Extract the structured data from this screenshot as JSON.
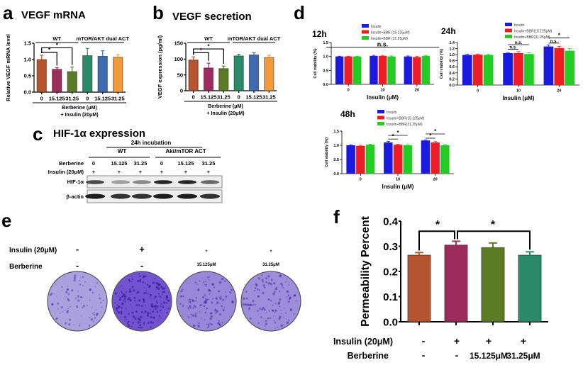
{
  "panels": {
    "a": {
      "letter": "a",
      "title": "VEGF mRNA",
      "xlabel_1": "Berberine (μM)",
      "xlabel_2": "+ Insulin (20μM)"
    },
    "b": {
      "letter": "b",
      "title": "VEGF secretion",
      "xlabel_1": "Berberine (μM)",
      "xlabel_2": "+ Insulin (20μM)"
    },
    "c": {
      "letter": "c",
      "title": "HIF-1α expression",
      "incubation": "24h incubation",
      "group_wt": "WT",
      "group_act": "Akt/mTOR ACT",
      "row_berberine": "Berberine",
      "row_insulin": "Insulin (20μM)",
      "lanes_berberine": [
        "0",
        "15.125",
        "31.25",
        "0",
        "15.125",
        "31.25"
      ],
      "lanes_insulin": [
        "+",
        "+",
        "+",
        "+",
        "+",
        "+"
      ],
      "band_hif": "HIF-1α",
      "band_actin": "β-actin",
      "hif_band_intensity": [
        0.75,
        0.35,
        0.45,
        0.9,
        0.9,
        0.6
      ],
      "actin_band_intensity": [
        0.95,
        0.85,
        0.85,
        0.95,
        0.95,
        0.85
      ]
    },
    "d": {
      "letter": "d",
      "legend": [
        "Insulin",
        "Insulin+BBR (15.125μM)",
        "Insulin+BBR (31.25μM)"
      ]
    },
    "e": {
      "letter": "e",
      "row_insulin": "Insulin (20μM)",
      "row_berberine": "Berberine",
      "insulin": [
        "-",
        "+",
        "+",
        "+"
      ],
      "berberine": [
        "-",
        "-",
        "15.125μM",
        "31.25μM"
      ],
      "stain_density": [
        0.3,
        0.9,
        0.5,
        0.45
      ]
    },
    "f": {
      "letter": "f",
      "row_insulin": "Insulin (20μM)",
      "row_berberine": "Berberine",
      "insulin": [
        "-",
        "+",
        "+",
        "+"
      ],
      "berberine": [
        "-",
        "-",
        "15.125μM",
        "31.25μM"
      ]
    }
  },
  "chart_data": [
    {
      "id": "a",
      "type": "bar",
      "ylabel": "Relative VEGF mRNA level",
      "categories": [
        "0",
        "15.125",
        "31.25",
        "0",
        "15.125",
        "31.25"
      ],
      "ylim": [
        0,
        1.5
      ],
      "yticks": [
        "0.0",
        "0.5",
        "1.0",
        "1.5"
      ],
      "series": [
        {
          "values": [
            1.0,
            0.7,
            0.63,
            1.12,
            1.1,
            1.07
          ],
          "errors": [
            0.13,
            0.05,
            0.14,
            0.22,
            0.17,
            0.08
          ]
        }
      ],
      "bar_colors": [
        "#b4552f",
        "#9c2c5c",
        "#5b7b25",
        "#2a8a6a",
        "#3f6caf",
        "#f39a3c"
      ],
      "groups": [
        {
          "label": "WT",
          "from": 0,
          "to": 2
        },
        {
          "label": "mTOR/AKT dual ACT",
          "from": 3,
          "to": 5
        }
      ],
      "annotations": [
        {
          "text": "*",
          "from": [
            0,
            0
          ],
          "to": [
            1,
            0
          ],
          "level": 1.22
        },
        {
          "text": "*",
          "from": [
            0,
            0
          ],
          "to": [
            2,
            0
          ],
          "level": 1.36
        }
      ]
    },
    {
      "id": "b",
      "type": "bar",
      "ylabel": "VEGF expression (pg/ml)",
      "categories": [
        "0",
        "15.125",
        "31.25",
        "0",
        "15.125",
        "31.25"
      ],
      "ylim": [
        0,
        150
      ],
      "yticks": [
        "0",
        "50",
        "100",
        "150"
      ],
      "series": [
        {
          "values": [
            97,
            72,
            70,
            110,
            113,
            105
          ],
          "errors": [
            10,
            15,
            8,
            5,
            7,
            7
          ]
        }
      ],
      "bar_colors": [
        "#b4552f",
        "#9c2c5c",
        "#5b7b25",
        "#2a8a6a",
        "#3f6caf",
        "#f39a3c"
      ],
      "groups": [
        {
          "label": "WT",
          "from": 0,
          "to": 2
        },
        {
          "label": "mTOR/AKT dual ACT",
          "from": 3,
          "to": 5
        }
      ],
      "annotations": [
        {
          "text": "*",
          "from": [
            0,
            0
          ],
          "to": [
            1,
            0
          ],
          "level": 120
        },
        {
          "text": "*",
          "from": [
            0,
            0
          ],
          "to": [
            2,
            0
          ],
          "level": 132
        }
      ]
    },
    {
      "id": "d12",
      "type": "bar",
      "title": "12h",
      "xlabel": "Insulin (μM)",
      "ylabel": "Cell viability (%)",
      "categories": [
        "0",
        "10",
        "20"
      ],
      "ylim": [
        0,
        1.5
      ],
      "yticks": [
        "0.0",
        "0.5",
        "1.0",
        "1.5"
      ],
      "legend_position": "top",
      "series": [
        {
          "name": "Insulin",
          "color": "#1a1ae0",
          "values": [
            1.0,
            1.02,
            1.0
          ],
          "errors": [
            0.01,
            0.02,
            0.02
          ]
        },
        {
          "name": "Insulin+BBR (15.125μM)",
          "color": "#ee1c24",
          "values": [
            1.0,
            1.02,
            0.98
          ],
          "errors": [
            0.01,
            0.02,
            0.02
          ]
        },
        {
          "name": "Insulin+BBR (31.25μM)",
          "color": "#22cc22",
          "values": [
            1.0,
            1.0,
            1.02
          ],
          "errors": [
            0.01,
            0.02,
            0.02
          ]
        }
      ],
      "annotations": [
        {
          "text": "n.s.",
          "from": [
            0,
            0
          ],
          "to": [
            2,
            2
          ],
          "level": 1.33,
          "flat": true
        }
      ]
    },
    {
      "id": "d24",
      "type": "bar",
      "title": "24h",
      "xlabel": "Insulin (μM)",
      "ylabel": "Cell viability (%)",
      "categories": [
        "0",
        "10",
        "20"
      ],
      "ylim": [
        0,
        1.4
      ],
      "yticks": [
        "0.0",
        "0.2",
        "0.4",
        "0.6",
        "0.8",
        "1.0",
        "1.2",
        "1.4"
      ],
      "legend_position": "top",
      "series": [
        {
          "name": "Insulin",
          "color": "#1a1ae0",
          "values": [
            0.99,
            1.05,
            1.27
          ],
          "errors": [
            0.03,
            0.02,
            0.05
          ]
        },
        {
          "name": "Insulin+BBR(15.125μM)",
          "color": "#ee1c24",
          "values": [
            1.0,
            1.05,
            1.22
          ],
          "errors": [
            0.02,
            0.05,
            0.05
          ]
        },
        {
          "name": "Insulin+BBR(31.25μM)",
          "color": "#22cc22",
          "values": [
            0.99,
            1.02,
            1.13
          ],
          "errors": [
            0.02,
            0.04,
            0.07
          ]
        }
      ],
      "annotations": [
        {
          "text": "n.s.",
          "from": [
            1,
            0
          ],
          "to": [
            1,
            1
          ],
          "level": 1.18,
          "flat": true
        },
        {
          "text": "n.s.",
          "from": [
            1,
            0
          ],
          "to": [
            1,
            2
          ],
          "level": 1.33,
          "flat": true
        },
        {
          "text": "n.s.",
          "from": [
            2,
            0
          ],
          "to": [
            2,
            1
          ],
          "level": 1.38,
          "flat": true
        },
        {
          "text": "*",
          "from": [
            2,
            0
          ],
          "to": [
            2,
            2
          ],
          "level": 1.55,
          "flat": true
        }
      ]
    },
    {
      "id": "d48",
      "type": "bar",
      "title": "48h",
      "xlabel": "Insulin (μM)",
      "ylabel": "Cell viability (%)",
      "categories": [
        "0",
        "10",
        "20"
      ],
      "ylim": [
        0,
        1.5
      ],
      "yticks": [
        "0.0",
        "0.5",
        "1.0",
        "1.5"
      ],
      "legend_position": "top",
      "series": [
        {
          "name": "Insulin",
          "color": "#1a1ae0",
          "values": [
            1.0,
            1.1,
            1.17
          ],
          "errors": [
            0.02,
            0.04,
            0.02
          ]
        },
        {
          "name": "Insulin+BBR(15.125μM)",
          "color": "#ee1c24",
          "values": [
            0.98,
            1.02,
            1.1
          ],
          "errors": [
            0.02,
            0.02,
            0.03
          ]
        },
        {
          "name": "Insulin+BBR(31.25μM)",
          "color": "#22cc22",
          "values": [
            1.02,
            1.0,
            1.0
          ],
          "errors": [
            0.02,
            0.02,
            0.03
          ]
        }
      ],
      "annotations": [
        {
          "text": "*",
          "from": [
            1,
            0
          ],
          "to": [
            1,
            1
          ],
          "level": 1.22,
          "flat": true
        },
        {
          "text": "*",
          "from": [
            1,
            0
          ],
          "to": [
            1,
            2
          ],
          "level": 1.35,
          "flat": true
        },
        {
          "text": "*",
          "from": [
            2,
            0
          ],
          "to": [
            2,
            1
          ],
          "level": 1.25,
          "flat": true
        },
        {
          "text": "*",
          "from": [
            2,
            0
          ],
          "to": [
            2,
            2
          ],
          "level": 1.4,
          "flat": true
        }
      ]
    },
    {
      "id": "f",
      "type": "bar",
      "ylabel": "Permeability Percent",
      "categories": [
        "1",
        "2",
        "3",
        "4"
      ],
      "hide_category_labels": true,
      "ylim": [
        0,
        0.4
      ],
      "yticks": [
        "0.0",
        "0.1",
        "0.2",
        "0.3",
        "0.4"
      ],
      "series": [
        {
          "values": [
            0.265,
            0.305,
            0.295,
            0.265
          ],
          "errors": [
            0.01,
            0.015,
            0.018,
            0.013
          ]
        }
      ],
      "bar_colors": [
        "#b4552f",
        "#9c2c5c",
        "#5b7b25",
        "#2a8a6a"
      ],
      "annotations": [
        {
          "text": "*",
          "from": [
            0,
            0
          ],
          "to": [
            1,
            0
          ],
          "level": 0.36
        },
        {
          "text": "*",
          "from": [
            1,
            0
          ],
          "to": [
            3,
            0
          ],
          "level": 0.36
        }
      ]
    }
  ]
}
